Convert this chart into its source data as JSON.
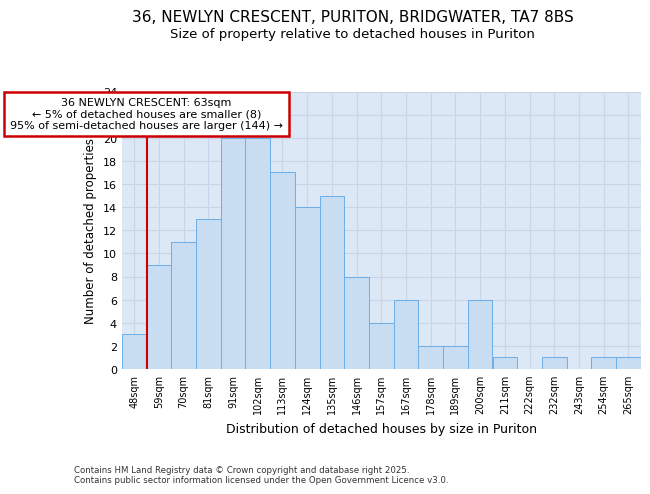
{
  "title_line1": "36, NEWLYN CRESCENT, PURITON, BRIDGWATER, TA7 8BS",
  "title_line2": "Size of property relative to detached houses in Puriton",
  "xlabel": "Distribution of detached houses by size in Puriton",
  "ylabel": "Number of detached properties",
  "categories": [
    "48sqm",
    "59sqm",
    "70sqm",
    "81sqm",
    "91sqm",
    "102sqm",
    "113sqm",
    "124sqm",
    "135sqm",
    "146sqm",
    "157sqm",
    "167sqm",
    "178sqm",
    "189sqm",
    "200sqm",
    "211sqm",
    "222sqm",
    "232sqm",
    "243sqm",
    "254sqm",
    "265sqm"
  ],
  "values": [
    3,
    9,
    11,
    13,
    20,
    20,
    17,
    14,
    15,
    8,
    4,
    6,
    2,
    2,
    6,
    1,
    0,
    1,
    0,
    1,
    1
  ],
  "bar_color": "#c9ddf2",
  "bar_edge_color": "#6aaee8",
  "annotation_title": "36 NEWLYN CRESCENT: 63sqm",
  "annotation_line1": "← 5% of detached houses are smaller (8)",
  "annotation_line2": "95% of semi-detached houses are larger (144) →",
  "annotation_box_color": "#ffffff",
  "annotation_border_color": "#cc0000",
  "red_line_color": "#cc0000",
  "ylim": [
    0,
    24
  ],
  "yticks": [
    0,
    2,
    4,
    6,
    8,
    10,
    12,
    14,
    16,
    18,
    20,
    22,
    24
  ],
  "grid_color": "#c8d4e8",
  "background_color": "#dce8f5",
  "footer": "Contains HM Land Registry data © Crown copyright and database right 2025.\nContains public sector information licensed under the Open Government Licence v3.0.",
  "title_fontsize": 11,
  "subtitle_fontsize": 9.5
}
